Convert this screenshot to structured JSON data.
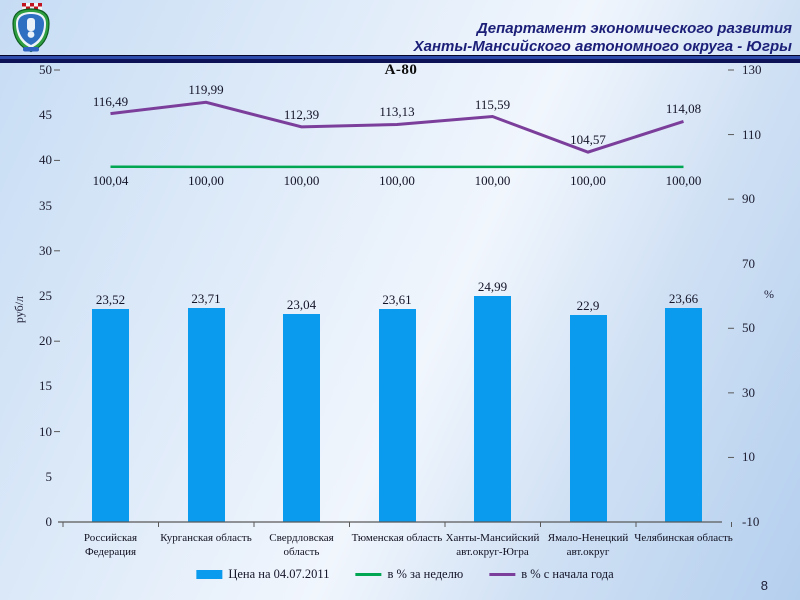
{
  "header": {
    "title_line1": "Департамент экономического развития",
    "title_line2": "Ханты-Мансийского автономного округа - Югры"
  },
  "footer": {
    "page_number": "8"
  },
  "chart_data": {
    "type": "bar",
    "title": "А-80",
    "categories": [
      "Российская Федерация",
      "Курганская область",
      "Свердловская область",
      "Тюменская область",
      "Ханты-Мансийский авт.округ-Югра",
      "Ямало-Ненецкий авт.округ",
      "Челябинская область"
    ],
    "bar_series": {
      "name": "Цена на 04.07.2011",
      "color": "#0a9bee",
      "values": [
        23.52,
        23.71,
        23.04,
        23.61,
        24.99,
        22.9,
        23.66
      ],
      "labels": [
        "23,52",
        "23,71",
        "23,04",
        "23,61",
        "24,99",
        "22,9",
        "23,66"
      ]
    },
    "line_series": [
      {
        "name": "в % за неделю",
        "color": "#00a651",
        "values": [
          100.04,
          100.0,
          100.0,
          100.0,
          100.0,
          100.0,
          100.0
        ],
        "labels": [
          "100,04",
          "100,00",
          "100,00",
          "100,00",
          "100,00",
          "100,00",
          "100,00"
        ],
        "label_side": "below"
      },
      {
        "name": "в % с начала года",
        "color": "#7b3f9b",
        "values": [
          116.49,
          119.99,
          112.39,
          113.13,
          115.59,
          104.57,
          114.08
        ],
        "labels": [
          "116,49",
          "119,99",
          "112,39",
          "113,13",
          "115,59",
          "104,57",
          "114,08"
        ],
        "label_side": "above"
      }
    ],
    "left_axis": {
      "title": "руб/л",
      "min": 0,
      "max": 50,
      "ticks": [
        0,
        5,
        10,
        15,
        20,
        25,
        30,
        35,
        40,
        45,
        50
      ],
      "dash_ticks": [
        10,
        20,
        30,
        40,
        50
      ]
    },
    "right_axis": {
      "title": "%",
      "min": -10,
      "max": 130,
      "ticks": [
        -10,
        10,
        30,
        50,
        70,
        90,
        110,
        130
      ],
      "dash_ticks": [
        10,
        30,
        50,
        90,
        110,
        130
      ]
    },
    "legend_position": "bottom",
    "grid": false
  }
}
